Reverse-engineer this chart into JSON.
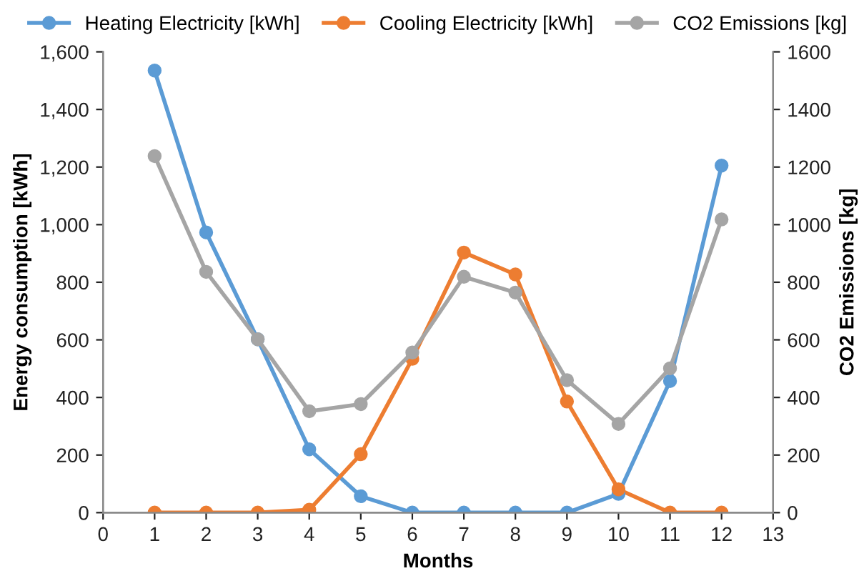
{
  "chart_data": {
    "type": "line",
    "xlabel": "Months",
    "ylabel": "Energy consumption [kWh]",
    "y2label": "CO2 Emissions [kg]",
    "x": [
      1,
      2,
      3,
      4,
      5,
      6,
      7,
      8,
      9,
      10,
      11,
      12
    ],
    "series": [
      {
        "name": "Heating Electricity [kWh]",
        "color": "#5b9bd5",
        "values": [
          1535,
          973,
          602,
          220,
          57,
          0,
          0,
          0,
          0,
          65,
          457,
          1205
        ]
      },
      {
        "name": "Cooling Electricity [kWh]",
        "color": "#ed7d31",
        "values": [
          0,
          0,
          0,
          10,
          203,
          534,
          903,
          827,
          386,
          81,
          0,
          0
        ]
      },
      {
        "name": "CO2 Emissions [kg]",
        "color": "#a5a5a5",
        "axis": "y2",
        "values": [
          1238,
          836,
          602,
          352,
          377,
          556,
          819,
          764,
          460,
          308,
          501,
          1018
        ]
      }
    ],
    "xlim": [
      0,
      13
    ],
    "xticks": [
      0,
      1,
      2,
      3,
      4,
      5,
      6,
      7,
      8,
      9,
      10,
      11,
      12,
      13
    ],
    "ylim": [
      0,
      1600
    ],
    "yticks": [
      {
        "value": 0,
        "label": "0"
      },
      {
        "value": 200,
        "label": "200"
      },
      {
        "value": 400,
        "label": "400"
      },
      {
        "value": 600,
        "label": "600"
      },
      {
        "value": 800,
        "label": "800"
      },
      {
        "value": 1000,
        "label": "1,000"
      },
      {
        "value": 1200,
        "label": "1,200"
      },
      {
        "value": 1400,
        "label": "1,400"
      },
      {
        "value": 1600,
        "label": "1,600"
      }
    ],
    "y2lim": [
      0,
      1600
    ],
    "y2ticks": [
      0,
      200,
      400,
      600,
      800,
      1000,
      1200,
      1400,
      1600
    ],
    "grid": false,
    "legend": "top",
    "marker": "circle",
    "line_style": "solid"
  }
}
